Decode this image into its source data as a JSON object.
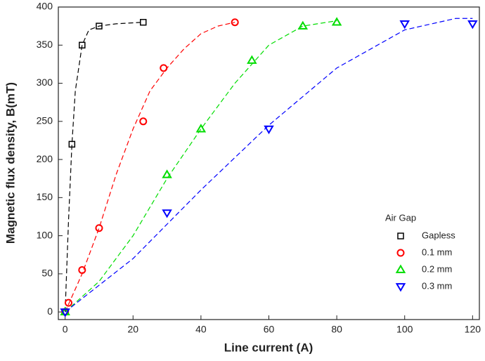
{
  "chart_data": {
    "type": "scatter",
    "x_label": "Line current (A)",
    "y_label": "Magnetic flux density, B(mT)",
    "xlim": [
      -2,
      122
    ],
    "ylim": [
      -10,
      400
    ],
    "xticks": [
      0,
      20,
      40,
      60,
      80,
      100,
      120
    ],
    "yticks": [
      0,
      50,
      100,
      150,
      200,
      250,
      300,
      350,
      400
    ],
    "legend_title": "Air Gap",
    "legend_position": "lower right",
    "series": [
      {
        "name": "Gapless",
        "color": "#000000",
        "marker": "square",
        "x": [
          0,
          2,
          5,
          10,
          23
        ],
        "y": [
          0,
          220,
          350,
          375,
          380
        ]
      },
      {
        "name": "0.1 mm",
        "color": "#ff0000",
        "marker": "circle",
        "x": [
          0,
          1,
          5,
          10,
          23,
          29,
          50
        ],
        "y": [
          0,
          12,
          55,
          110,
          250,
          320,
          380
        ]
      },
      {
        "name": "0.2 mm",
        "color": "#00dd00",
        "marker": "triangle-up",
        "x": [
          0,
          30,
          40,
          55,
          70,
          80
        ],
        "y": [
          0,
          180,
          240,
          330,
          375,
          380
        ]
      },
      {
        "name": "0.3 mm",
        "color": "#0000ff",
        "marker": "triangle-down",
        "x": [
          0,
          30,
          60,
          100,
          120
        ],
        "y": [
          0,
          130,
          240,
          378,
          378
        ]
      }
    ],
    "fits": [
      {
        "color": "#000000",
        "x": [
          0,
          1,
          2,
          3,
          5,
          7,
          10,
          15,
          23
        ],
        "y": [
          0,
          120,
          220,
          290,
          350,
          370,
          375,
          378,
          380
        ]
      },
      {
        "color": "#ff0000",
        "x": [
          0,
          5,
          10,
          15,
          20,
          25,
          30,
          35,
          40,
          45,
          50
        ],
        "y": [
          0,
          50,
          110,
          180,
          240,
          290,
          320,
          345,
          365,
          375,
          380
        ]
      },
      {
        "color": "#00dd00",
        "x": [
          0,
          10,
          20,
          30,
          40,
          50,
          60,
          70,
          80
        ],
        "y": [
          0,
          40,
          100,
          175,
          240,
          300,
          350,
          375,
          382
        ]
      },
      {
        "color": "#0000ff",
        "x": [
          0,
          20,
          40,
          60,
          80,
          100,
          115,
          120
        ],
        "y": [
          0,
          70,
          160,
          245,
          320,
          370,
          385,
          385
        ]
      }
    ]
  }
}
